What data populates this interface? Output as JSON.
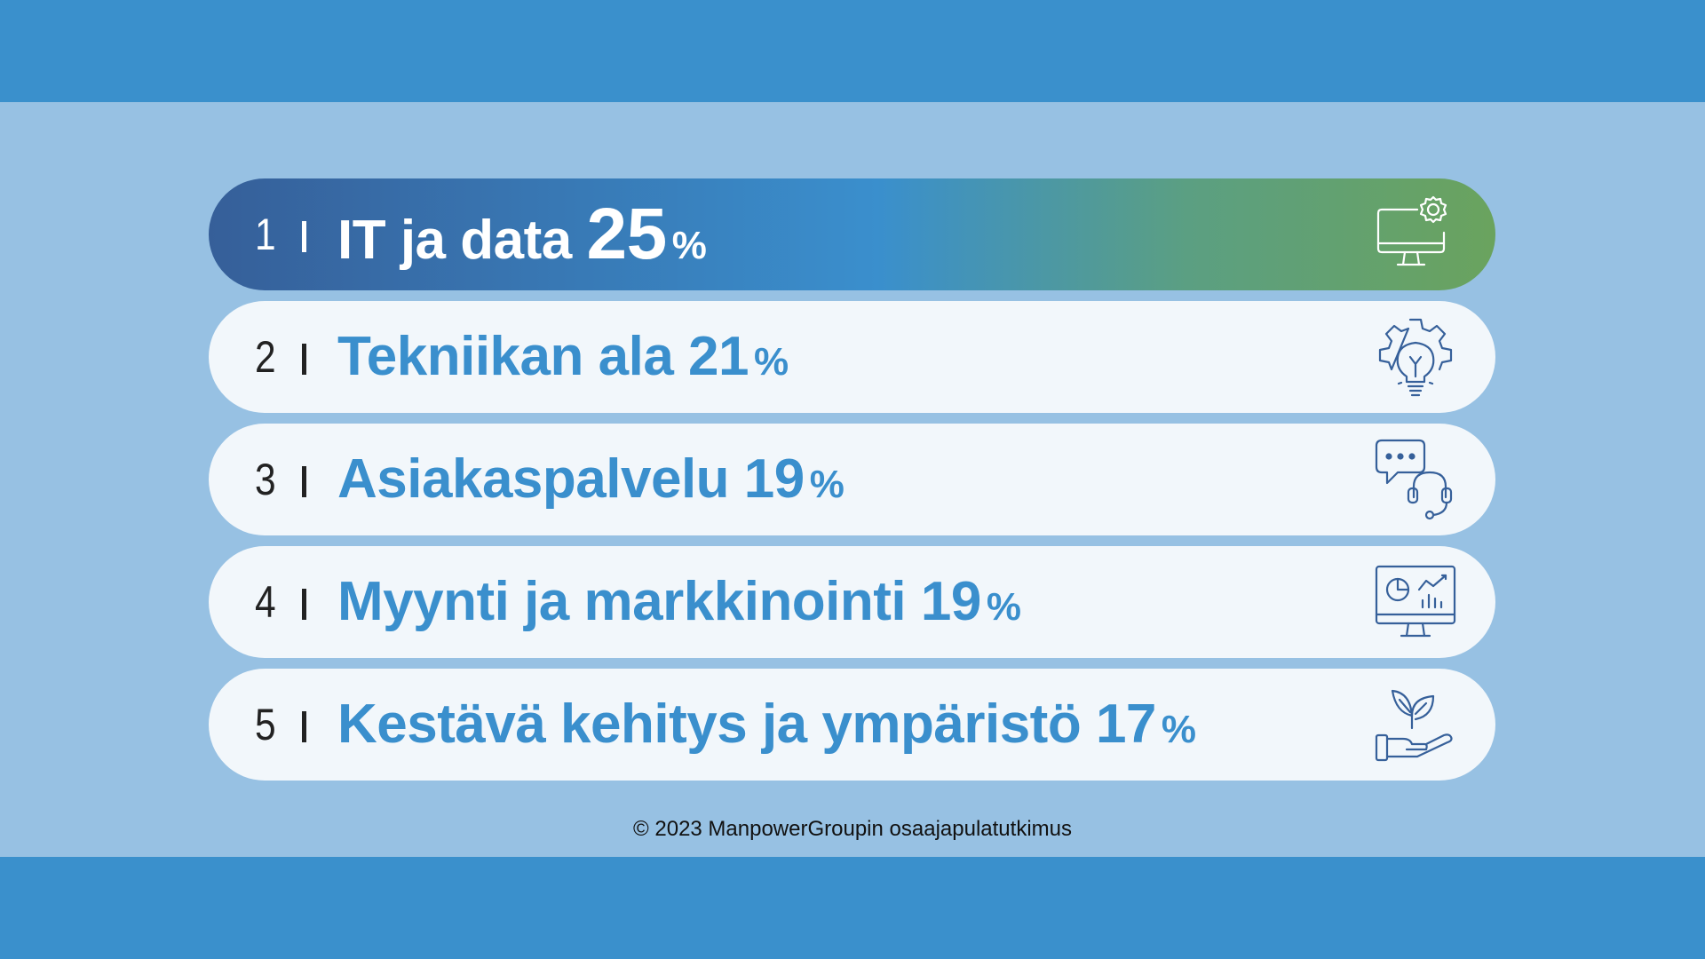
{
  "items": [
    {
      "rank": "1",
      "label": "IT ja data",
      "value": "25",
      "unit": "%",
      "icon": "computer-gear-icon"
    },
    {
      "rank": "2",
      "label": "Tekniikan ala",
      "value": "21",
      "unit": "%",
      "icon": "gear-lightbulb-icon"
    },
    {
      "rank": "3",
      "label": "Asiakaspalvelu",
      "value": "19",
      "unit": "%",
      "icon": "chat-headset-icon"
    },
    {
      "rank": "4",
      "label": "Myynti ja markkinointi",
      "value": "19",
      "unit": "%",
      "icon": "monitor-analytics-icon"
    },
    {
      "rank": "5",
      "label": "Kestävä kehitys ja ympäristö",
      "value": "17",
      "unit": "%",
      "icon": "hand-plant-icon"
    }
  ],
  "footer": "© 2023 ManpowerGroupin osaajapulatutkimus",
  "colors": {
    "band": "#3a90cc",
    "background": "#97c1e3",
    "accent": "#3a8fcd",
    "row": "#f2f7fb",
    "gradient_start": "#365f99",
    "gradient_end": "#6aa35e"
  }
}
